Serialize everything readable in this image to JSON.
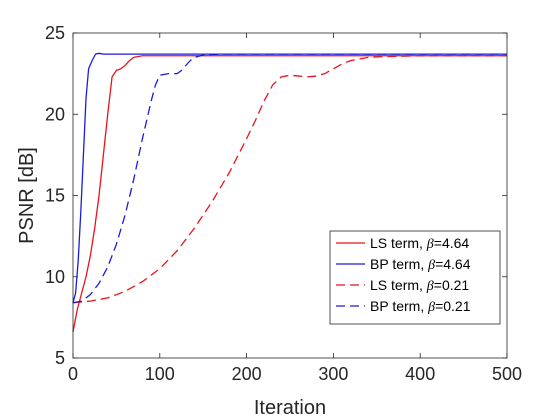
{
  "chart_data": {
    "type": "line",
    "xlabel": "Iteration",
    "ylabel": "PSNR [dB]",
    "xlim": [
      0,
      500
    ],
    "ylim": [
      5,
      25
    ],
    "xticks": [
      0,
      100,
      200,
      300,
      400,
      500
    ],
    "yticks": [
      5,
      10,
      15,
      20,
      25
    ],
    "grid": false,
    "legend_position": "lower-right",
    "series": [
      {
        "name": "LS term, β=4.64",
        "label_prefix": "LS term, ",
        "label_beta": "β",
        "label_value": "=4.64",
        "color": "#e8141b",
        "dash": "solid",
        "points": [
          [
            0,
            6.6
          ],
          [
            5,
            8.0
          ],
          [
            10,
            9.0
          ],
          [
            15,
            10.0
          ],
          [
            20,
            11.3
          ],
          [
            25,
            13.0
          ],
          [
            30,
            15.0
          ],
          [
            35,
            17.5
          ],
          [
            40,
            20.0
          ],
          [
            45,
            22.3
          ],
          [
            50,
            22.7
          ],
          [
            55,
            22.8
          ],
          [
            60,
            23.0
          ],
          [
            65,
            23.3
          ],
          [
            70,
            23.5
          ],
          [
            80,
            23.6
          ],
          [
            100,
            23.6
          ],
          [
            200,
            23.6
          ],
          [
            300,
            23.6
          ],
          [
            400,
            23.6
          ],
          [
            500,
            23.6
          ]
        ]
      },
      {
        "name": "BP term, β=4.64",
        "label_prefix": "BP term, ",
        "label_beta": "β",
        "label_value": "=4.64",
        "color": "#1a1adf",
        "dash": "solid",
        "points": [
          [
            0,
            8.4
          ],
          [
            3,
            9.0
          ],
          [
            6,
            11.0
          ],
          [
            9,
            14.0
          ],
          [
            12,
            17.5
          ],
          [
            15,
            21.0
          ],
          [
            18,
            22.8
          ],
          [
            22,
            23.3
          ],
          [
            26,
            23.7
          ],
          [
            30,
            23.75
          ],
          [
            35,
            23.7
          ],
          [
            50,
            23.7
          ],
          [
            100,
            23.7
          ],
          [
            200,
            23.7
          ],
          [
            300,
            23.7
          ],
          [
            400,
            23.7
          ],
          [
            500,
            23.7
          ]
        ]
      },
      {
        "name": "LS term, β=0.21",
        "label_prefix": "LS term, ",
        "label_beta": "β",
        "label_value": "=0.21",
        "color": "#e8141b",
        "dash": "dashed",
        "points": [
          [
            0,
            8.4
          ],
          [
            20,
            8.5
          ],
          [
            40,
            8.7
          ],
          [
            60,
            9.1
          ],
          [
            80,
            9.7
          ],
          [
            100,
            10.5
          ],
          [
            120,
            11.6
          ],
          [
            140,
            13.0
          ],
          [
            160,
            14.6
          ],
          [
            180,
            16.4
          ],
          [
            200,
            18.5
          ],
          [
            210,
            19.6
          ],
          [
            220,
            20.8
          ],
          [
            230,
            21.8
          ],
          [
            240,
            22.3
          ],
          [
            250,
            22.4
          ],
          [
            260,
            22.35
          ],
          [
            270,
            22.3
          ],
          [
            280,
            22.35
          ],
          [
            290,
            22.5
          ],
          [
            300,
            22.8
          ],
          [
            310,
            23.1
          ],
          [
            320,
            23.3
          ],
          [
            340,
            23.5
          ],
          [
            360,
            23.55
          ],
          [
            400,
            23.6
          ],
          [
            500,
            23.6
          ]
        ]
      },
      {
        "name": "BP term, β=0.21",
        "label_prefix": "BP term, ",
        "label_beta": "β",
        "label_value": "=0.21",
        "color": "#1a1adf",
        "dash": "dashed",
        "points": [
          [
            0,
            8.4
          ],
          [
            10,
            8.5
          ],
          [
            20,
            8.9
          ],
          [
            30,
            9.6
          ],
          [
            40,
            10.6
          ],
          [
            50,
            12.0
          ],
          [
            60,
            13.8
          ],
          [
            70,
            16.0
          ],
          [
            80,
            18.5
          ],
          [
            90,
            20.8
          ],
          [
            95,
            21.8
          ],
          [
            100,
            22.4
          ],
          [
            110,
            22.5
          ],
          [
            120,
            22.5
          ],
          [
            125,
            22.7
          ],
          [
            130,
            23.0
          ],
          [
            135,
            23.3
          ],
          [
            140,
            23.5
          ],
          [
            150,
            23.65
          ],
          [
            170,
            23.7
          ],
          [
            200,
            23.7
          ],
          [
            300,
            23.7
          ],
          [
            400,
            23.7
          ],
          [
            500,
            23.7
          ]
        ]
      }
    ]
  }
}
